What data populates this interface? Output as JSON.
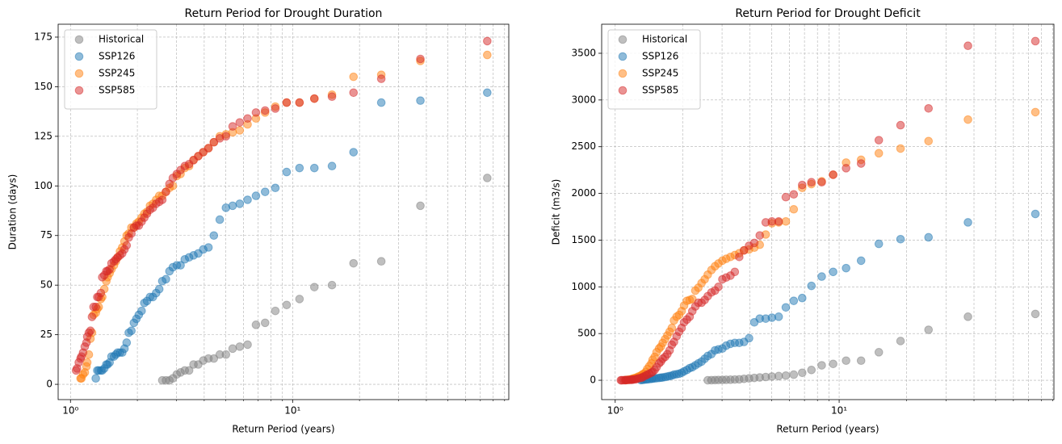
{
  "chart_data": [
    {
      "type": "scatter",
      "title": "Return Period for Drought Duration",
      "xlabel": "Return Period (years)",
      "ylabel": "Duration (days)",
      "xscale": "log",
      "xlim": [
        0.88,
        94
      ],
      "ylim": [
        -7.7,
        181.5
      ],
      "xticks": [
        {
          "value": 1,
          "label": "10⁰"
        },
        {
          "value": 10,
          "label": "10¹"
        }
      ],
      "xminorticks": [
        2,
        3,
        4,
        5,
        6,
        7,
        8,
        9,
        20,
        30,
        40,
        50,
        60,
        70,
        80,
        90
      ],
      "yticks": [
        0,
        25,
        50,
        75,
        100,
        125,
        150,
        175
      ],
      "grid": true,
      "legend": "upper left",
      "series": [
        {
          "name": "Historical",
          "color": "#7f7f7f",
          "x": [
            75.2,
            37.6,
            25.07,
            18.8,
            15.04,
            12.53,
            10.74,
            9.4,
            8.36,
            7.52,
            6.84,
            6.27,
            5.78,
            5.37,
            5.01,
            4.7,
            4.42,
            4.18,
            3.96,
            3.76,
            3.58,
            3.42,
            3.27,
            3.13,
            3.01,
            2.89,
            2.79,
            2.69,
            2.59
          ],
          "values": [
            104,
            90,
            62,
            61,
            50,
            49,
            43,
            40,
            37,
            31,
            30,
            20,
            19,
            18,
            15,
            15,
            13,
            13,
            12,
            10,
            10,
            7,
            7,
            6,
            5,
            3,
            2,
            2,
            2
          ]
        },
        {
          "name": "SSP126",
          "color": "#1f77b4",
          "x": [
            75.2,
            37.6,
            25.07,
            18.8,
            15.04,
            12.53,
            10.74,
            9.4,
            8.36,
            7.52,
            6.84,
            6.27,
            5.78,
            5.37,
            5.01,
            4.7,
            4.42,
            4.18,
            3.96,
            3.76,
            3.58,
            3.42,
            3.27,
            3.13,
            3.01,
            2.89,
            2.79,
            2.69,
            2.59,
            2.51,
            2.43,
            2.35,
            2.28,
            2.21,
            2.15,
            2.09,
            2.03,
            1.98,
            1.93,
            1.88,
            1.83,
            1.79,
            1.75,
            1.71,
            1.67,
            1.63,
            1.6,
            1.57,
            1.53,
            1.5,
            1.47,
            1.45,
            1.42,
            1.39,
            1.37,
            1.34,
            1.32,
            1.3
          ],
          "values": [
            147,
            143,
            142,
            117,
            110,
            109,
            109,
            107,
            99,
            97,
            95,
            93,
            91,
            90,
            89,
            83,
            75,
            69,
            68,
            66,
            65,
            64,
            63,
            60,
            60,
            59,
            57,
            53,
            52,
            48,
            46,
            44,
            44,
            42,
            41,
            37,
            35,
            33,
            31,
            27,
            26,
            21,
            18,
            16,
            16,
            16,
            15,
            14,
            14,
            11,
            10,
            10,
            8,
            7,
            7,
            7,
            7,
            3
          ]
        },
        {
          "name": "SSP245",
          "color": "#ff7f0e",
          "x": [
            75.2,
            37.6,
            25.07,
            18.8,
            15.04,
            12.53,
            10.74,
            9.4,
            8.36,
            7.52,
            6.84,
            6.27,
            5.78,
            5.37,
            5.01,
            4.7,
            4.42,
            4.18,
            3.96,
            3.76,
            3.58,
            3.42,
            3.27,
            3.13,
            3.01,
            2.89,
            2.79,
            2.69,
            2.59,
            2.51,
            2.43,
            2.35,
            2.28,
            2.21,
            2.15,
            2.09,
            2.03,
            1.98,
            1.93,
            1.88,
            1.83,
            1.79,
            1.75,
            1.71,
            1.67,
            1.63,
            1.6,
            1.57,
            1.53,
            1.5,
            1.47,
            1.45,
            1.42,
            1.39,
            1.37,
            1.34,
            1.32,
            1.3,
            1.27,
            1.25,
            1.23,
            1.21,
            1.19,
            1.18,
            1.16,
            1.14,
            1.12,
            1.11
          ],
          "values": [
            166,
            163,
            156,
            155,
            146,
            144,
            142,
            142,
            140,
            137,
            134,
            131,
            128,
            127,
            126,
            125,
            122,
            119,
            117,
            115,
            113,
            110,
            109,
            106,
            105,
            100,
            99,
            97,
            95,
            95,
            93,
            91,
            90,
            87,
            86,
            84,
            82,
            81,
            79,
            79,
            76,
            75,
            72,
            69,
            67,
            64,
            62,
            60,
            58,
            56,
            54,
            52,
            48,
            44,
            43,
            39,
            38,
            36,
            35,
            26,
            23,
            15,
            11,
            9,
            6,
            5,
            3,
            3
          ]
        },
        {
          "name": "SSP585",
          "color": "#d62728",
          "x": [
            75.2,
            37.6,
            25.07,
            18.8,
            15.04,
            12.53,
            10.74,
            9.4,
            8.36,
            7.52,
            6.84,
            6.27,
            5.78,
            5.37,
            5.01,
            4.7,
            4.42,
            4.18,
            3.96,
            3.76,
            3.58,
            3.42,
            3.27,
            3.13,
            3.01,
            2.89,
            2.79,
            2.69,
            2.59,
            2.51,
            2.43,
            2.35,
            2.28,
            2.21,
            2.15,
            2.09,
            2.03,
            1.98,
            1.93,
            1.88,
            1.83,
            1.79,
            1.75,
            1.71,
            1.67,
            1.63,
            1.6,
            1.57,
            1.53,
            1.5,
            1.47,
            1.45,
            1.42,
            1.39,
            1.37,
            1.34,
            1.32,
            1.3,
            1.27,
            1.25,
            1.23,
            1.21,
            1.19,
            1.18,
            1.16,
            1.14,
            1.12,
            1.11,
            1.09,
            1.07,
            1.06
          ],
          "values": [
            173,
            164,
            154,
            147,
            145,
            144,
            142,
            142,
            139,
            138,
            137,
            134,
            132,
            130,
            125,
            124,
            122,
            119,
            117,
            115,
            113,
            111,
            110,
            108,
            106,
            104,
            101,
            97,
            93,
            92,
            91,
            89,
            88,
            86,
            84,
            82,
            80,
            80,
            79,
            76,
            74,
            70,
            68,
            66,
            65,
            64,
            63,
            62,
            61,
            58,
            57,
            57,
            55,
            54,
            46,
            44,
            44,
            39,
            39,
            34,
            27,
            26,
            24,
            21,
            19,
            16,
            14,
            13,
            11,
            8,
            7
          ]
        }
      ]
    },
    {
      "type": "scatter",
      "title": "Return Period for Drought Deficit",
      "xlabel": "Return Period (years)",
      "ylabel": "Deficit (m3/s)",
      "xscale": "log",
      "xlim": [
        0.87,
        91
      ],
      "ylim": [
        -207,
        3811
      ],
      "xticks": [
        {
          "value": 1,
          "label": "10⁰"
        },
        {
          "value": 10,
          "label": "10¹"
        }
      ],
      "xminorticks": [
        2,
        3,
        4,
        5,
        6,
        7,
        8,
        9,
        20,
        30,
        40,
        50,
        60,
        70,
        80,
        90
      ],
      "yticks": [
        0,
        500,
        1000,
        1500,
        2000,
        2500,
        3000,
        3500
      ],
      "grid": true,
      "legend": "upper left",
      "series": [
        {
          "name": "Historical",
          "color": "#7f7f7f",
          "x": [
            75.2,
            37.6,
            25.07,
            18.8,
            15.04,
            12.53,
            10.74,
            9.4,
            8.36,
            7.52,
            6.84,
            6.27,
            5.78,
            5.37,
            5.01,
            4.7,
            4.42,
            4.18,
            3.96,
            3.76,
            3.58,
            3.42,
            3.27,
            3.13,
            3.01,
            2.89,
            2.79,
            2.69,
            2.59
          ],
          "values": [
            710,
            680,
            540,
            420,
            300,
            210,
            210,
            175,
            160,
            110,
            80,
            60,
            50,
            45,
            40,
            35,
            30,
            25,
            20,
            15,
            10,
            8,
            6,
            5,
            4,
            3,
            2,
            1,
            0
          ]
        },
        {
          "name": "SSP126",
          "color": "#1f77b4",
          "x": [
            75.2,
            37.6,
            25.07,
            18.8,
            15.04,
            12.53,
            10.74,
            9.4,
            8.36,
            7.52,
            6.84,
            6.27,
            5.78,
            5.37,
            5.01,
            4.7,
            4.42,
            4.18,
            3.96,
            3.76,
            3.58,
            3.42,
            3.27,
            3.13,
            3.01,
            2.89,
            2.79,
            2.69,
            2.59,
            2.51,
            2.43,
            2.35,
            2.28,
            2.21,
            2.15,
            2.09,
            2.03,
            1.98,
            1.93,
            1.88,
            1.83,
            1.79,
            1.75,
            1.71,
            1.67,
            1.63,
            1.6,
            1.57,
            1.53,
            1.5,
            1.47,
            1.45,
            1.42,
            1.39,
            1.37,
            1.34,
            1.32,
            1.3
          ],
          "values": [
            1780,
            1690,
            1530,
            1510,
            1460,
            1280,
            1200,
            1160,
            1110,
            1010,
            880,
            850,
            780,
            680,
            670,
            660,
            660,
            620,
            450,
            410,
            400,
            400,
            390,
            370,
            340,
            330,
            320,
            280,
            260,
            230,
            200,
            180,
            160,
            140,
            130,
            110,
            95,
            80,
            70,
            65,
            60,
            50,
            45,
            40,
            35,
            30,
            28,
            25,
            22,
            20,
            18,
            15,
            12,
            10,
            8,
            6,
            4,
            2
          ]
        },
        {
          "name": "SSP245",
          "color": "#ff7f0e",
          "x": [
            75.2,
            37.6,
            25.07,
            18.8,
            15.04,
            12.53,
            10.74,
            9.4,
            8.36,
            7.52,
            6.84,
            6.27,
            5.78,
            5.37,
            5.01,
            4.7,
            4.42,
            4.18,
            3.96,
            3.76,
            3.58,
            3.42,
            3.27,
            3.13,
            3.01,
            2.89,
            2.79,
            2.69,
            2.59,
            2.51,
            2.43,
            2.35,
            2.28,
            2.21,
            2.15,
            2.09,
            2.03,
            1.98,
            1.93,
            1.88,
            1.83,
            1.79,
            1.75,
            1.71,
            1.67,
            1.63,
            1.6,
            1.57,
            1.53,
            1.5,
            1.47,
            1.45,
            1.42,
            1.39,
            1.37,
            1.34,
            1.32,
            1.3,
            1.27,
            1.25,
            1.23,
            1.21,
            1.19,
            1.18,
            1.16,
            1.14,
            1.12,
            1.11
          ],
          "values": [
            2870,
            2790,
            2560,
            2480,
            2430,
            2360,
            2330,
            2200,
            2130,
            2100,
            2060,
            1830,
            1700,
            1690,
            1680,
            1560,
            1450,
            1420,
            1400,
            1390,
            1360,
            1340,
            1320,
            1300,
            1280,
            1250,
            1220,
            1180,
            1130,
            1080,
            1040,
            990,
            960,
            870,
            860,
            850,
            800,
            740,
            700,
            680,
            640,
            560,
            520,
            480,
            440,
            400,
            360,
            340,
            300,
            250,
            220,
            180,
            150,
            120,
            90,
            70,
            60,
            50,
            40,
            30,
            25,
            20,
            15,
            10,
            8,
            5,
            3,
            2
          ]
        },
        {
          "name": "SSP585",
          "color": "#d62728",
          "x": [
            75.2,
            37.6,
            25.07,
            18.8,
            15.04,
            12.53,
            10.74,
            9.4,
            8.36,
            7.52,
            6.84,
            6.27,
            5.78,
            5.37,
            5.01,
            4.7,
            4.42,
            4.18,
            3.96,
            3.76,
            3.58,
            3.42,
            3.27,
            3.13,
            3.01,
            2.89,
            2.79,
            2.69,
            2.59,
            2.51,
            2.43,
            2.35,
            2.28,
            2.21,
            2.15,
            2.09,
            2.03,
            1.98,
            1.93,
            1.88,
            1.83,
            1.79,
            1.75,
            1.71,
            1.67,
            1.63,
            1.6,
            1.57,
            1.53,
            1.5,
            1.47,
            1.45,
            1.42,
            1.39,
            1.37,
            1.34,
            1.32,
            1.3,
            1.27,
            1.25,
            1.23,
            1.21,
            1.19,
            1.18,
            1.16,
            1.14,
            1.12,
            1.11,
            1.09,
            1.07,
            1.06
          ],
          "values": [
            3630,
            3580,
            2910,
            2730,
            2570,
            2320,
            2270,
            2200,
            2120,
            2120,
            2090,
            1990,
            1960,
            1700,
            1700,
            1690,
            1550,
            1470,
            1440,
            1390,
            1320,
            1160,
            1120,
            1100,
            1080,
            1000,
            960,
            940,
            900,
            860,
            830,
            830,
            790,
            740,
            680,
            650,
            620,
            560,
            520,
            470,
            410,
            380,
            320,
            280,
            250,
            230,
            200,
            180,
            140,
            110,
            90,
            80,
            70,
            60,
            50,
            40,
            30,
            25,
            20,
            15,
            10,
            8,
            6,
            5,
            4,
            3,
            2,
            1,
            1,
            0,
            0
          ]
        }
      ]
    }
  ]
}
